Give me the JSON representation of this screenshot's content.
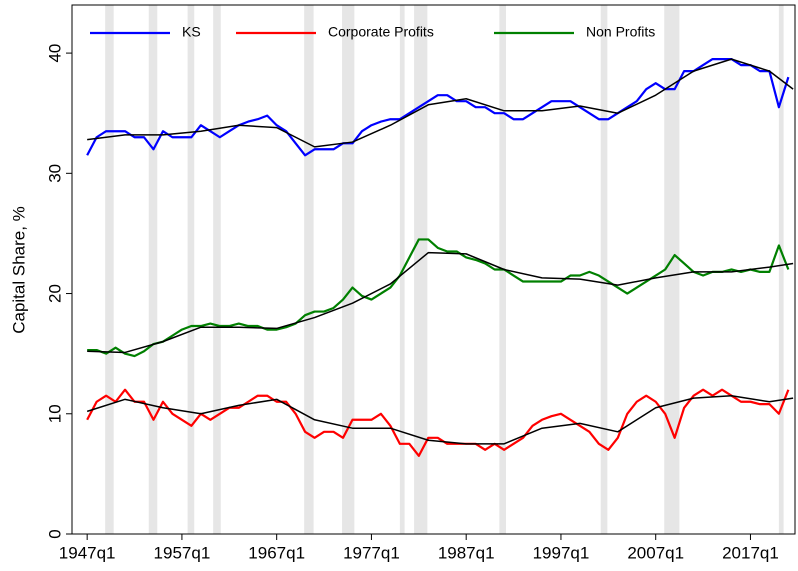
{
  "chart_data": {
    "type": "line",
    "y_label": "Capital Share, %",
    "x": [
      1947,
      1948,
      1949,
      1950,
      1951,
      1952,
      1953,
      1954,
      1955,
      1956,
      1957,
      1958,
      1959,
      1960,
      1961,
      1962,
      1963,
      1964,
      1965,
      1966,
      1967,
      1968,
      1969,
      1970,
      1971,
      1972,
      1973,
      1974,
      1975,
      1976,
      1977,
      1978,
      1979,
      1980,
      1981,
      1982,
      1983,
      1984,
      1985,
      1986,
      1987,
      1988,
      1989,
      1990,
      1991,
      1992,
      1993,
      1994,
      1995,
      1996,
      1997,
      1998,
      1999,
      2000,
      2001,
      2002,
      2003,
      2004,
      2005,
      2006,
      2007,
      2008,
      2009,
      2010,
      2011,
      2012,
      2013,
      2014,
      2015,
      2016,
      2017,
      2018,
      2019,
      2020,
      2021
    ],
    "series": [
      {
        "name": "KS",
        "color": "#0000ff",
        "values": [
          31.5,
          33,
          33.5,
          33.5,
          33.5,
          33,
          33,
          32,
          33.5,
          33,
          33,
          33,
          34,
          33.5,
          33,
          33.5,
          34,
          34.3,
          34.5,
          34.8,
          34,
          33.5,
          32.5,
          31.5,
          32,
          32,
          32,
          32.5,
          32.5,
          33.5,
          34,
          34.3,
          34.5,
          34.5,
          35,
          35.5,
          36,
          36.5,
          36.5,
          36,
          36,
          35.5,
          35.5,
          35,
          35,
          34.5,
          34.5,
          35,
          35.5,
          36,
          36,
          36,
          35.5,
          35,
          34.5,
          34.5,
          35,
          35.5,
          36,
          37,
          37.5,
          37,
          37,
          38.5,
          38.5,
          39,
          39.5,
          39.5,
          39.5,
          39,
          39,
          38.5,
          38.5,
          35.5,
          38
        ]
      },
      {
        "name": "Corporate Profits",
        "color": "#ff0000",
        "values": [
          9.5,
          11,
          11.5,
          11,
          12,
          11,
          11,
          9.5,
          11,
          10,
          9.5,
          9,
          10,
          9.5,
          10,
          10.5,
          10.5,
          11,
          11.5,
          11.5,
          11,
          11,
          10,
          8.5,
          8,
          8.5,
          8.5,
          8,
          9.5,
          9.5,
          9.5,
          10,
          9,
          7.5,
          7.5,
          6.5,
          8,
          8,
          7.5,
          7.5,
          7.5,
          7.5,
          7,
          7.5,
          7,
          7.5,
          8,
          9,
          9.5,
          9.8,
          10,
          9.5,
          9,
          8.5,
          7.5,
          7,
          8,
          10,
          11,
          11.5,
          11,
          10,
          8,
          10.5,
          11.5,
          12,
          11.5,
          12,
          11.5,
          11,
          11,
          10.8,
          10.8,
          10,
          12
        ]
      },
      {
        "name": "Non Profits",
        "color": "#008000",
        "values": [
          15.3,
          15.3,
          15,
          15.5,
          15,
          14.8,
          15.2,
          15.8,
          16,
          16.5,
          17,
          17.3,
          17.3,
          17.5,
          17.3,
          17.3,
          17.5,
          17.3,
          17.3,
          17,
          17,
          17.2,
          17.5,
          18.2,
          18.5,
          18.5,
          18.8,
          19.5,
          20.5,
          19.8,
          19.5,
          20,
          20.5,
          21.5,
          23,
          24.5,
          24.5,
          23.8,
          23.5,
          23.5,
          23,
          22.8,
          22.5,
          22,
          22,
          21.5,
          21,
          21,
          21,
          21,
          21,
          21.5,
          21.5,
          21.8,
          21.5,
          21,
          20.5,
          20,
          20.5,
          21,
          21.5,
          22,
          23.2,
          22.5,
          21.8,
          21.5,
          21.8,
          21.8,
          22,
          21.8,
          22,
          21.8,
          21.8,
          24,
          22
        ]
      }
    ],
    "trend_x": [
      1947,
      1951,
      1955,
      1959,
      1963,
      1967,
      1971,
      1975,
      1979,
      1983,
      1987,
      1991,
      1995,
      1999,
      2003,
      2007,
      2011,
      2015,
      2019,
      2021.5
    ],
    "trends": [
      {
        "color": "#000000",
        "values": [
          32.8,
          33.2,
          33.2,
          33.5,
          34,
          33.8,
          32.2,
          32.6,
          34,
          35.7,
          36.2,
          35.2,
          35.2,
          35.6,
          35,
          36.5,
          38.5,
          39.5,
          38.5,
          37
        ]
      },
      {
        "color": "#000000",
        "values": [
          10.2,
          11.2,
          10.5,
          10,
          10.7,
          11.2,
          9.5,
          8.8,
          8.8,
          7.8,
          7.5,
          7.5,
          8.8,
          9.2,
          8.5,
          10.5,
          11.3,
          11.5,
          11,
          11.3
        ]
      },
      {
        "color": "#000000",
        "values": [
          15.2,
          15.1,
          16,
          17.2,
          17.2,
          17.1,
          18,
          19.2,
          20.8,
          23.4,
          23.3,
          22,
          21.3,
          21.2,
          20.7,
          21.3,
          21.8,
          21.8,
          22.2,
          22.5
        ]
      }
    ],
    "shaded_periods": [
      [
        1948.9,
        1949.8
      ],
      [
        1953.5,
        1954.4
      ],
      [
        1957.6,
        1958.3
      ],
      [
        1960.3,
        1961.1
      ],
      [
        1969.9,
        1970.9
      ],
      [
        1973.9,
        1975.2
      ],
      [
        1980.0,
        1980.5
      ],
      [
        1981.5,
        1982.9
      ],
      [
        1990.5,
        1991.2
      ],
      [
        2001.2,
        2001.9
      ],
      [
        2007.9,
        2009.5
      ],
      [
        2020.0,
        2020.5
      ]
    ],
    "shade_color": "#e6e6e6",
    "xlim": [
      1945.4,
      2021.7
    ],
    "ylim": [
      0,
      44
    ],
    "xticks": [
      {
        "value": 1947,
        "label": "1947q1"
      },
      {
        "value": 1957,
        "label": "1957q1"
      },
      {
        "value": 1967,
        "label": "1967q1"
      },
      {
        "value": 1977,
        "label": "1977q1"
      },
      {
        "value": 1987,
        "label": "1987q1"
      },
      {
        "value": 1997,
        "label": "1997q1"
      },
      {
        "value": 2007,
        "label": "2007q1"
      },
      {
        "value": 2017,
        "label": "2017q1"
      }
    ],
    "yticks": [
      0,
      10,
      20,
      30,
      40
    ]
  }
}
